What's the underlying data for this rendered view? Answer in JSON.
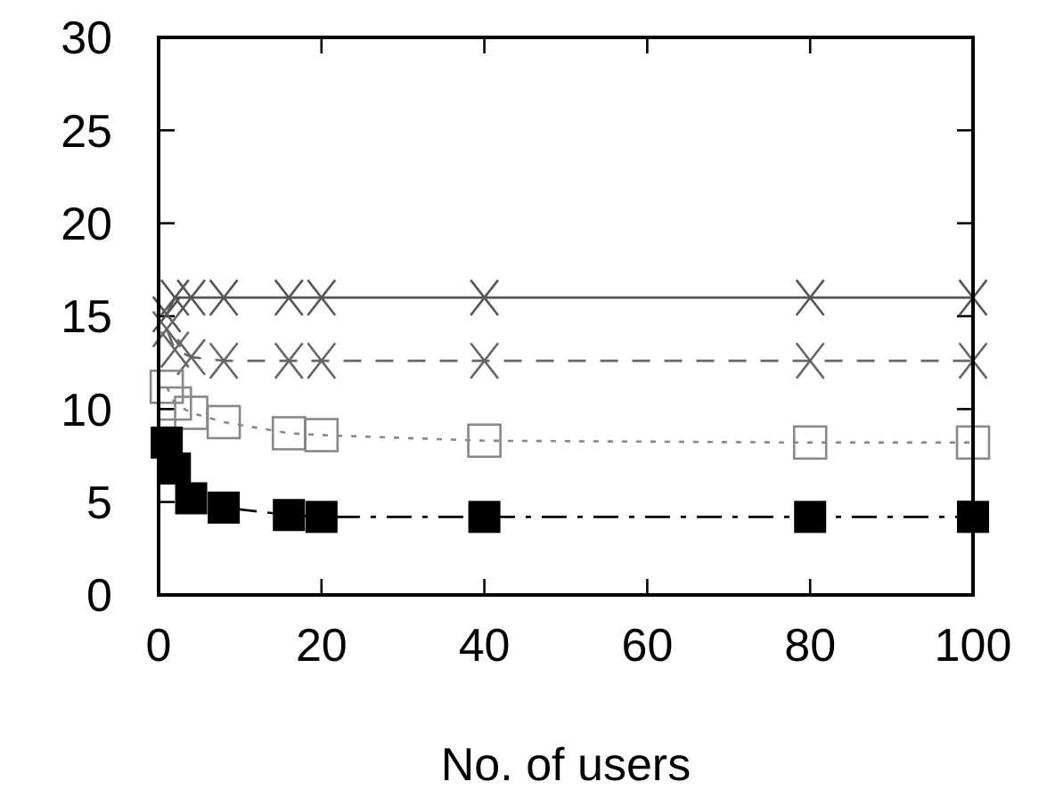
{
  "chart_data": {
    "type": "line",
    "xlabel": "No. of users",
    "x": [
      1,
      2,
      4,
      8,
      16,
      20,
      40,
      80,
      100
    ],
    "xlim": [
      0,
      100
    ],
    "xticks": [
      0,
      20,
      40,
      60,
      80,
      100
    ],
    "ylim": [
      0,
      30
    ],
    "yticks": [
      0,
      5,
      10,
      15,
      20,
      25,
      30
    ],
    "grid": false,
    "series": [
      {
        "color": "#555555",
        "marker": "cross",
        "line_style": "solid",
        "values": [
          15.1,
          16,
          16,
          16,
          16,
          16,
          16,
          16,
          16
        ]
      },
      {
        "color": "#666666",
        "marker": "cross",
        "line_style": "dashed",
        "values": [
          14.3,
          13.2,
          12.8,
          12.6,
          12.6,
          12.6,
          12.6,
          12.6,
          12.6
        ]
      },
      {
        "color": "#888888",
        "marker": "square-open",
        "line_style": "dotted",
        "values": [
          11.2,
          10.3,
          9.8,
          9.3,
          8.7,
          8.6,
          8.3,
          8.2,
          8.2
        ]
      },
      {
        "color": "#000000",
        "marker": "square",
        "line_style": "dashdot",
        "values": [
          8.2,
          6.8,
          5.2,
          4.7,
          4.3,
          4.2,
          4.2,
          4.2,
          4.2
        ]
      }
    ]
  }
}
